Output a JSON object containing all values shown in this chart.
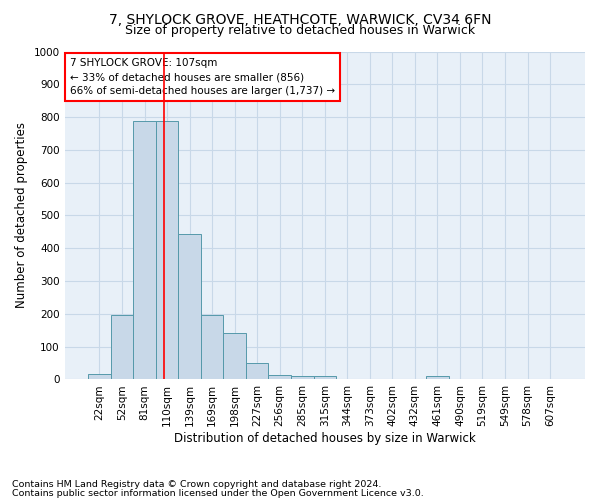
{
  "title1": "7, SHYLOCK GROVE, HEATHCOTE, WARWICK, CV34 6FN",
  "title2": "Size of property relative to detached houses in Warwick",
  "xlabel": "Distribution of detached houses by size in Warwick",
  "ylabel": "Number of detached properties",
  "footnote1": "Contains HM Land Registry data © Crown copyright and database right 2024.",
  "footnote2": "Contains public sector information licensed under the Open Government Licence v3.0.",
  "categories": [
    "22sqm",
    "52sqm",
    "81sqm",
    "110sqm",
    "139sqm",
    "169sqm",
    "198sqm",
    "227sqm",
    "256sqm",
    "285sqm",
    "315sqm",
    "344sqm",
    "373sqm",
    "402sqm",
    "432sqm",
    "461sqm",
    "490sqm",
    "519sqm",
    "549sqm",
    "578sqm",
    "607sqm"
  ],
  "values": [
    18,
    197,
    789,
    789,
    443,
    197,
    142,
    49,
    15,
    10,
    10,
    0,
    0,
    0,
    0,
    10,
    0,
    0,
    0,
    0,
    0
  ],
  "bar_color": "#c8d8e8",
  "bar_edge_color": "#5599aa",
  "annotation_box_text": "7 SHYLOCK GROVE: 107sqm\n← 33% of detached houses are smaller (856)\n66% of semi-detached houses are larger (1,737) →",
  "annotation_box_color": "white",
  "annotation_box_edge_color": "red",
  "vline_color": "red",
  "vline_x_index": 2.85,
  "ylim": [
    0,
    1000
  ],
  "yticks": [
    0,
    100,
    200,
    300,
    400,
    500,
    600,
    700,
    800,
    900,
    1000
  ],
  "grid_color": "#c8d8e8",
  "background_color": "#e8f0f8",
  "title1_fontsize": 10,
  "title2_fontsize": 9,
  "axis_label_fontsize": 8.5,
  "tick_fontsize": 7.5,
  "annotation_fontsize": 7.5,
  "footnote_fontsize": 6.8
}
